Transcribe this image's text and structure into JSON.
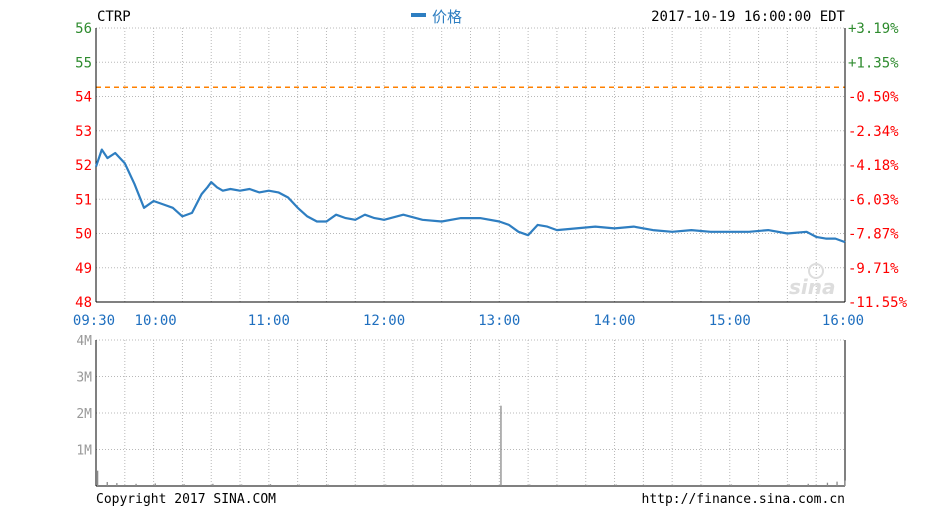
{
  "header": {
    "ticker": "CTRP",
    "legend_label": "价格",
    "timestamp": "2017-10-19 16:00:00 EDT"
  },
  "footer": {
    "copyright": "Copyright 2017 SINA.COM",
    "url": "http://finance.sina.com.cn"
  },
  "watermark": "sina",
  "colors": {
    "price_line": "#2e7ec1",
    "reference_line": "#ff8000",
    "axis_up": "#2e8b2e",
    "axis_down": "#ff0000",
    "time_label": "#1f6fbf",
    "grid": "#b8b8b8",
    "volume_bar": "#8a8a8a"
  },
  "chart_data": [
    {
      "type": "line",
      "name": "price",
      "x_ticks": [
        "09:30",
        "10:00",
        "11:00",
        "12:00",
        "13:00",
        "14:00",
        "15:00",
        "16:00"
      ],
      "y_ticks_left": [
        "56",
        "55",
        "54",
        "53",
        "52",
        "51",
        "50",
        "49",
        "48"
      ],
      "y_ticks_right": [
        "+3.19%",
        "+1.35%",
        "-0.50%",
        "-2.34%",
        "-4.18%",
        "-6.03%",
        "-7.87%",
        "-9.71%",
        "-11.55%"
      ],
      "ylim": [
        48,
        56
      ],
      "reference_value": 54.27,
      "grid": true,
      "series": [
        {
          "name": "价格",
          "x": [
            "09:30",
            "09:33",
            "09:36",
            "09:40",
            "09:45",
            "09:50",
            "09:55",
            "10:00",
            "10:05",
            "10:10",
            "10:15",
            "10:20",
            "10:25",
            "10:28",
            "10:30",
            "10:33",
            "10:36",
            "10:40",
            "10:45",
            "10:50",
            "10:55",
            "11:00",
            "11:05",
            "11:10",
            "11:15",
            "11:20",
            "11:25",
            "11:30",
            "11:35",
            "11:40",
            "11:45",
            "11:50",
            "11:55",
            "12:00",
            "12:10",
            "12:20",
            "12:30",
            "12:40",
            "12:50",
            "13:00",
            "13:05",
            "13:10",
            "13:15",
            "13:20",
            "13:25",
            "13:30",
            "13:40",
            "13:50",
            "14:00",
            "14:10",
            "14:20",
            "14:30",
            "14:40",
            "14:50",
            "15:00",
            "15:10",
            "15:20",
            "15:30",
            "15:40",
            "15:45",
            "15:50",
            "15:55",
            "16:00"
          ],
          "values": [
            51.95,
            52.45,
            52.2,
            52.35,
            52.05,
            51.45,
            50.75,
            50.95,
            50.85,
            50.75,
            50.5,
            50.6,
            51.15,
            51.35,
            51.5,
            51.35,
            51.25,
            51.3,
            51.25,
            51.3,
            51.2,
            51.25,
            51.2,
            51.05,
            50.75,
            50.5,
            50.35,
            50.35,
            50.55,
            50.45,
            50.4,
            50.55,
            50.45,
            50.4,
            50.55,
            50.4,
            50.35,
            50.45,
            50.45,
            50.35,
            50.25,
            50.05,
            49.95,
            50.25,
            50.2,
            50.1,
            50.15,
            50.2,
            50.15,
            50.2,
            50.1,
            50.05,
            50.1,
            50.05,
            50.05,
            50.05,
            50.1,
            50.0,
            50.05,
            49.9,
            49.85,
            49.85,
            49.75
          ]
        }
      ]
    },
    {
      "type": "bar",
      "name": "volume",
      "y_ticks": [
        "4M",
        "3M",
        "2M",
        "1M"
      ],
      "ylim": [
        0,
        4000000
      ],
      "grid": true,
      "x": [
        "09:30",
        "09:35",
        "09:40",
        "09:50",
        "10:00",
        "10:15",
        "10:30",
        "10:45",
        "11:00",
        "11:15",
        "11:30",
        "11:45",
        "12:00",
        "12:15",
        "12:30",
        "12:45",
        "13:00",
        "13:15",
        "13:30",
        "13:45",
        "14:00",
        "14:15",
        "14:30",
        "14:45",
        "15:00",
        "15:15",
        "15:30",
        "15:40",
        "15:50",
        "15:55",
        "15:59"
      ],
      "values": [
        420000,
        110000,
        80000,
        60000,
        70000,
        50000,
        60000,
        40000,
        50000,
        40000,
        40000,
        30000,
        40000,
        30000,
        30000,
        30000,
        2200000,
        40000,
        30000,
        30000,
        40000,
        30000,
        30000,
        30000,
        40000,
        30000,
        50000,
        60000,
        90000,
        120000,
        150000
      ]
    }
  ]
}
